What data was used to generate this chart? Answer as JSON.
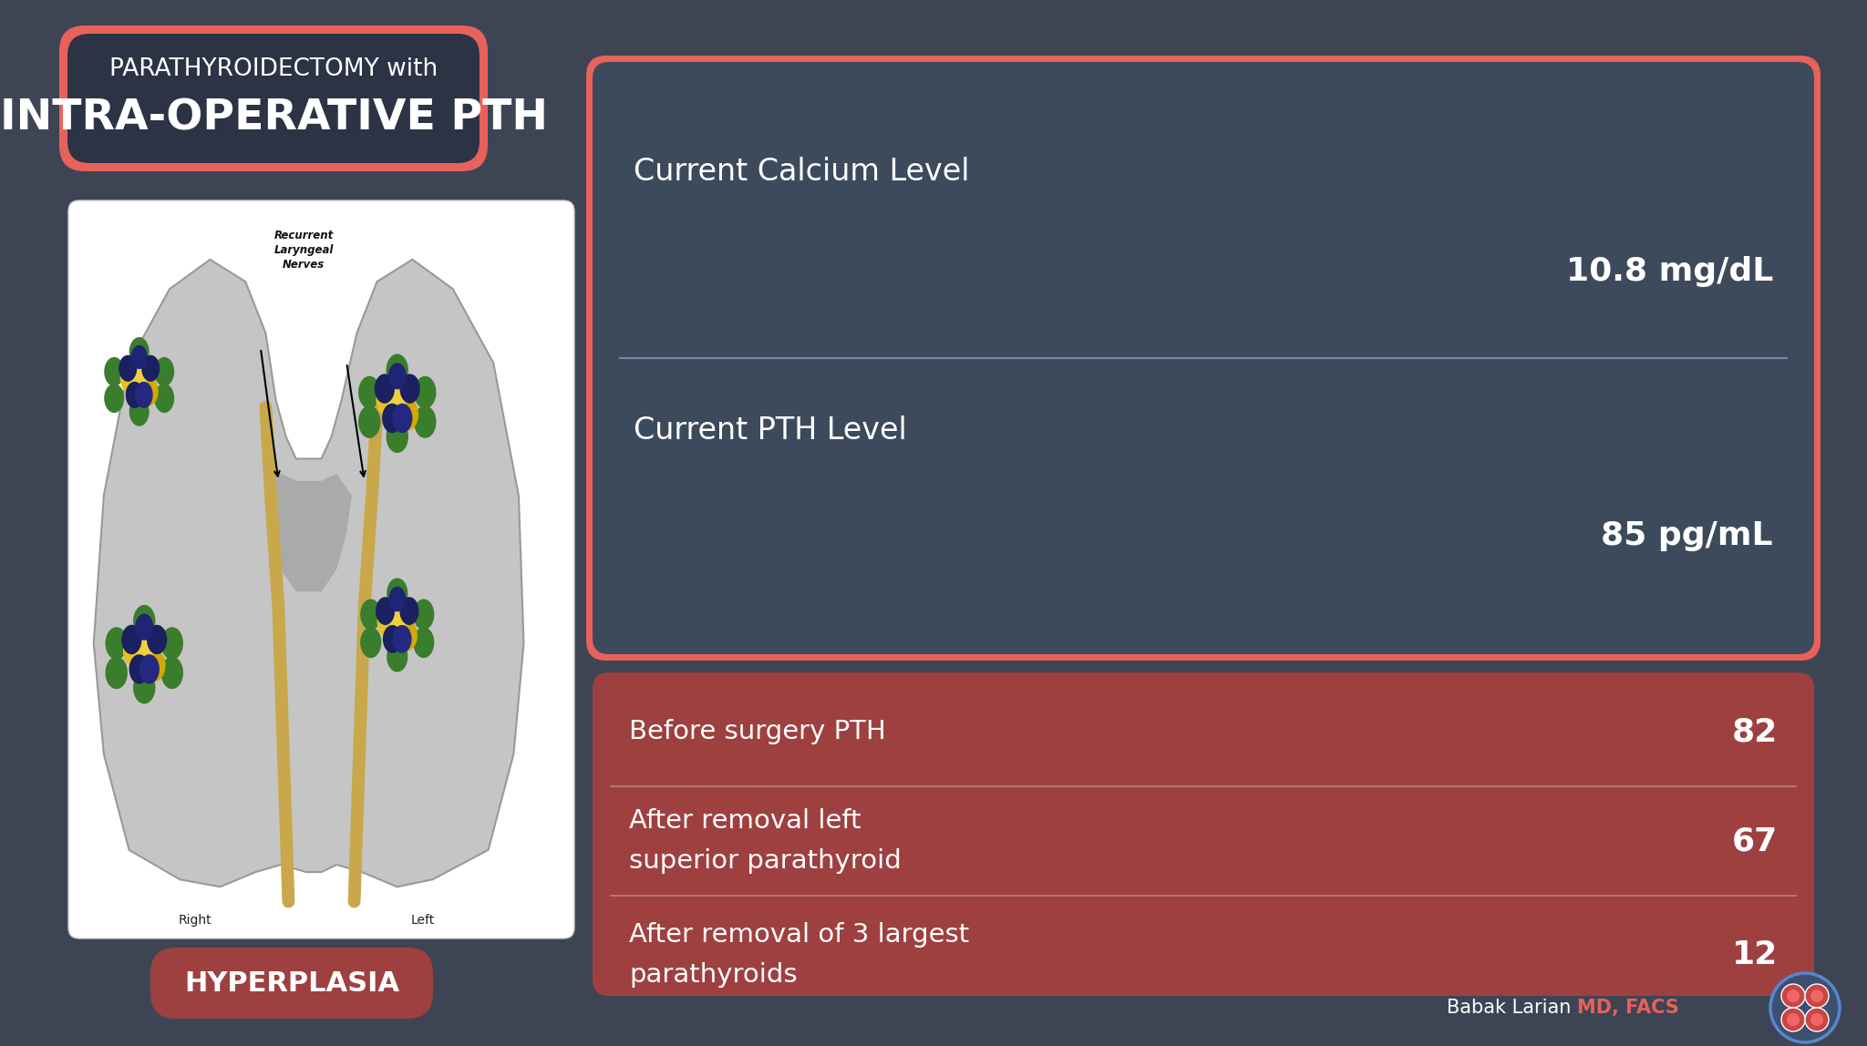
{
  "bg_color": "#3d4555",
  "title_line1": "PARATHYROIDECTOMY with",
  "title_line2": "INTRA-OPERATIVE PTH",
  "title_box_bg": "#2c3345",
  "title_box_border": "#e8615a",
  "calcium_label": "Current Calcium Level",
  "calcium_value": "10.8 mg/dL",
  "pth_label": "Current PTH Level",
  "pth_value": "85 pg/mL",
  "info_box_bg": "#3d4a5c",
  "table_bg": "#9e4040",
  "table_rows": [
    {
      "label1": "Before surgery PTH",
      "label2": "",
      "value": "82"
    },
    {
      "label1": "After removal left",
      "label2": "superior parathyroid",
      "value": "67"
    },
    {
      "label1": "After removal of 3 largest",
      "label2": "parathyroids",
      "value": "12"
    }
  ],
  "hyperplasia_text": "HYPERPLASIA",
  "hyperplasia_bg": "#9e4040",
  "footer_normal": "Babak Larian",
  "footer_bold": "MD, FACS",
  "white": "#ffffff",
  "coral": "#e8615a",
  "nerve_color": "#c8a84b",
  "thyroid_gray": "#c5c5c5",
  "thyroid_dark": "#b0b0b0"
}
